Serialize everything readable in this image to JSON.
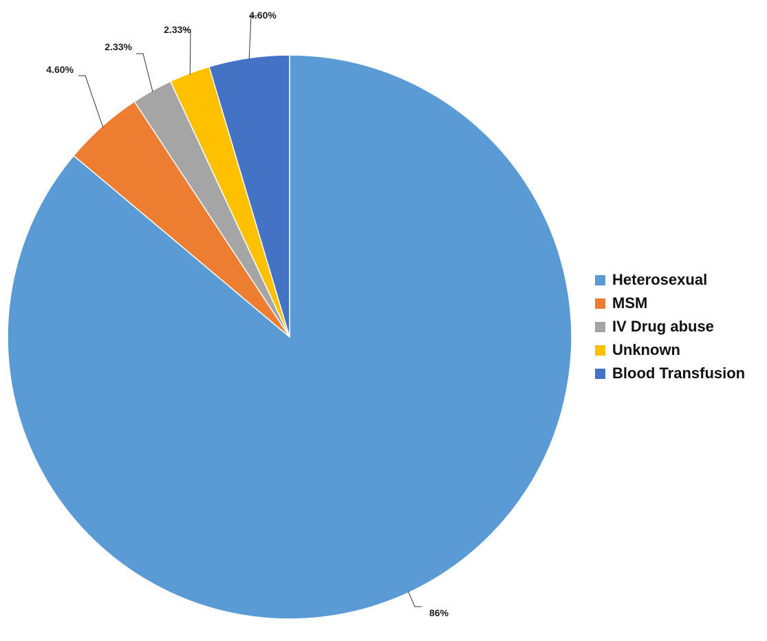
{
  "chart_data": {
    "type": "pie",
    "title": "",
    "start": "top-center",
    "direction": "clockwise",
    "legend_position": "right",
    "series": [
      {
        "name": "Heterosexual",
        "value": 86,
        "label": "86%",
        "color": "#5B9BD5"
      },
      {
        "name": "MSM",
        "value": 4.6,
        "label": "4.60%",
        "color": "#ED7D31"
      },
      {
        "name": "IV Drug abuse",
        "value": 2.33,
        "label": "2.33%",
        "color": "#A5A5A5"
      },
      {
        "name": "Unknown",
        "value": 2.33,
        "label": "2.33%",
        "color": "#FFC000"
      },
      {
        "name": "Blood Transfusion",
        "value": 4.6,
        "label": "4.60%",
        "color": "#4472C4"
      }
    ]
  }
}
